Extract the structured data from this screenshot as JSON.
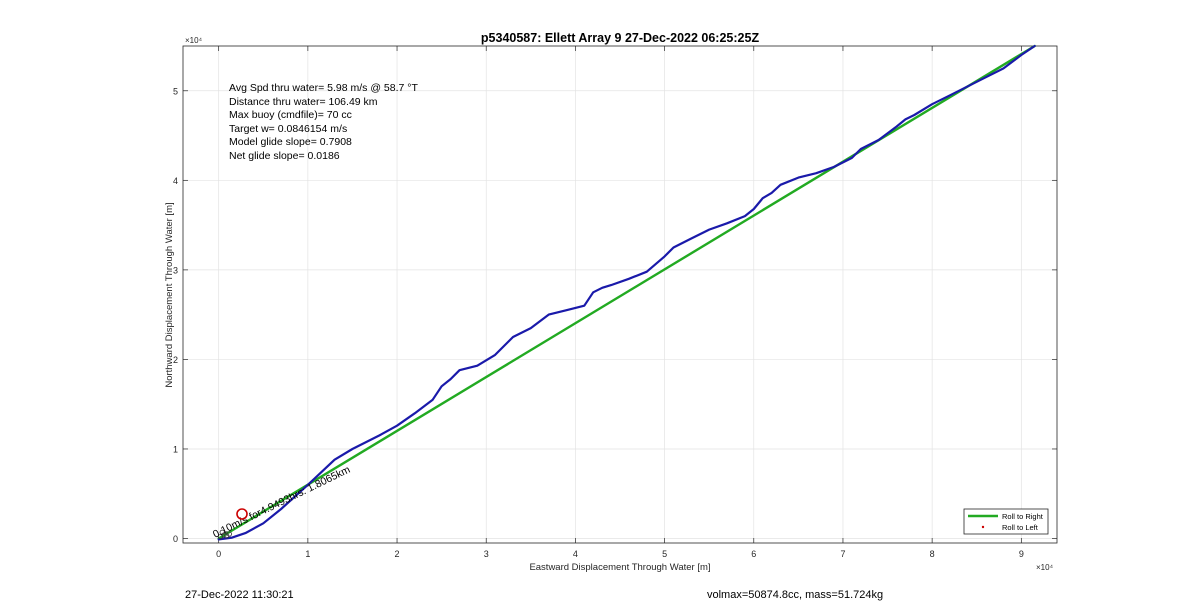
{
  "chart_data": {
    "type": "line",
    "title": "p5340587: Ellett Array 9 27-Dec-2022 06:25:25Z",
    "xlabel": "Eastward Displacement Through Water [m]",
    "ylabel": "Northward Displacement Through Water [m]",
    "x_exponent_label": "×10⁴",
    "y_exponent_label": "×10⁴",
    "xlim": [
      -4000,
      94000
    ],
    "ylim": [
      -500,
      55000
    ],
    "xticks": [
      0,
      10000,
      20000,
      30000,
      40000,
      50000,
      60000,
      70000,
      80000,
      90000
    ],
    "xtick_labels": [
      "0",
      "1",
      "2",
      "3",
      "4",
      "5",
      "6",
      "7",
      "8",
      "9"
    ],
    "yticks": [
      0,
      10000,
      20000,
      30000,
      40000,
      50000
    ],
    "ytick_labels": [
      "0",
      "1",
      "2",
      "3",
      "4",
      "5"
    ],
    "grid": true,
    "legend_location": "bottom-right",
    "series": [
      {
        "name": "Roll to Right",
        "style": "line",
        "color": "#22aa22",
        "x": [
          0,
          91500
        ],
        "y": [
          0,
          55000
        ]
      },
      {
        "name": "Roll to Left",
        "style": "marker",
        "color": "#cc0000",
        "x": [],
        "y": []
      },
      {
        "name": "",
        "style": "line",
        "color": "#1a1aaa",
        "x": [
          0,
          1500,
          3000,
          5000,
          7000,
          10000,
          13000,
          15000,
          18000,
          20000,
          22000,
          24000,
          25000,
          26000,
          27000,
          29000,
          31000,
          33000,
          35000,
          37000,
          39000,
          41000,
          42000,
          43000,
          44000,
          46000,
          48000,
          50000,
          51000,
          53000,
          55000,
          57000,
          59000,
          60000,
          61000,
          62000,
          63000,
          65000,
          67000,
          69000,
          70000,
          71000,
          72000,
          74000,
          76000,
          77000,
          78000,
          80000,
          82000,
          84000,
          86000,
          88000,
          90000,
          91500
        ],
        "y": [
          -100,
          100,
          600,
          1700,
          3300,
          6000,
          8800,
          10000,
          11500,
          12600,
          14000,
          15500,
          17000,
          17800,
          18800,
          19300,
          20500,
          22500,
          23500,
          25000,
          25500,
          26000,
          27500,
          28000,
          28300,
          29000,
          29800,
          31500,
          32500,
          33500,
          34500,
          35200,
          36000,
          36800,
          38000,
          38600,
          39500,
          40300,
          40800,
          41500,
          42000,
          42500,
          43500,
          44500,
          46000,
          46800,
          47300,
          48500,
          49500,
          50500,
          51500,
          52500,
          54000,
          55000
        ]
      }
    ],
    "annotations": [
      {
        "text": "Avg Spd thru water=  5.98 m/s @  58.7 °T"
      },
      {
        "text": "Distance thru water= 106.49 km"
      },
      {
        "text": "Max buoy (cmdfile)= 70 cc"
      },
      {
        "text": "Target w= 0.0846154 m/s"
      },
      {
        "text": "Model glide slope= 0.7908"
      },
      {
        "text": "Net glide slope= 0.0186"
      }
    ],
    "rotated_label": "0.10m/s for4.9493hrs: 1.8065km",
    "start_marker": {
      "x": 3000,
      "y": 2800
    }
  },
  "footer": {
    "timestamp": "27-Dec-2022 11:30:21",
    "summary": "volmax=50874.8cc, mass=51.724kg"
  }
}
